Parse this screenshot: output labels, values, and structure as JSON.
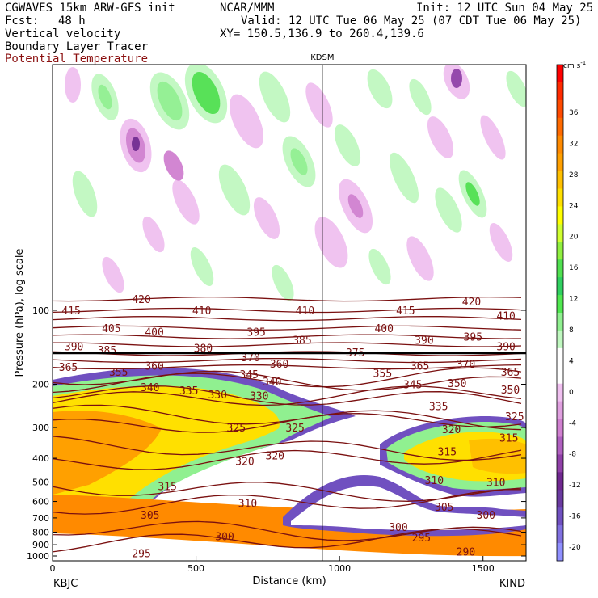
{
  "header": {
    "model": "CGWAVES 15km ARW-GFS init",
    "org": "NCAR/MMM",
    "init": "Init: 12 UTC Sun 04 May 25",
    "fcst_label": "Fcst:",
    "fcst_value": "48 h",
    "valid": "Valid: 12 UTC Tue 06 May 25 (07 CDT Tue 06 May 25)",
    "field1": "Vertical velocity",
    "field2": "Boundary Layer Tracer",
    "field3": "Potential Temperature",
    "xy": "XY= 150.5,136.9 to 260.4,139.6"
  },
  "chart_data": {
    "type": "heatmap",
    "title": "",
    "ylabel": "Pressure (hPa), log scale",
    "xlabel": "Distance (km)",
    "xlim": [
      0,
      1650
    ],
    "ylim": [
      1040,
      10
    ],
    "x_ticks": [
      0,
      500,
      1000,
      1500
    ],
    "y_ticks": [
      100,
      200,
      300,
      400,
      500,
      600,
      700,
      800,
      900,
      1000
    ],
    "station_marker": {
      "label": "KDSM",
      "x": 940
    },
    "endpoints": {
      "left": "KBJC",
      "right": "KIND"
    },
    "colorbar": {
      "unit": "cm s",
      "unit_exp": "-1",
      "labels": [
        "36",
        "32",
        "28",
        "24",
        "20",
        "16",
        "12",
        "8",
        "4",
        "0",
        "-4",
        "-8",
        "-12",
        "-16",
        "-20"
      ],
      "colors": [
        "#ff0000",
        "#ff2a00",
        "#ff4a00",
        "#ff6a00",
        "#ff8a00",
        "#ffa000",
        "#ffc000",
        "#ffe000",
        "#ffff00",
        "#d0ff30",
        "#90f040",
        "#50e050",
        "#30d060",
        "#50e850",
        "#90f090",
        "#c0f8c0",
        "#ffffff",
        "#ffffff",
        "#f0c0f0",
        "#e0a0e0",
        "#d080d0",
        "#b060c0",
        "#9040a8",
        "#702890",
        "#6a3aa0",
        "#7050c0",
        "#8070e0",
        "#9090ff"
      ]
    },
    "theta_labels": [
      {
        "t": "415",
        "x": 65,
        "p": 100
      },
      {
        "t": "420",
        "x": 310,
        "p": 90
      },
      {
        "t": "410",
        "x": 520,
        "p": 100
      },
      {
        "t": "415",
        "x": 1230,
        "p": 100
      },
      {
        "t": "420",
        "x": 1460,
        "p": 92
      },
      {
        "t": "410",
        "x": 1580,
        "p": 105
      },
      {
        "t": "405",
        "x": 205,
        "p": 118
      },
      {
        "t": "400",
        "x": 355,
        "p": 122
      },
      {
        "t": "410",
        "x": 880,
        "p": 100
      },
      {
        "t": "395",
        "x": 710,
        "p": 122
      },
      {
        "t": "400",
        "x": 1155,
        "p": 118
      },
      {
        "t": "395",
        "x": 1465,
        "p": 128
      },
      {
        "t": "390",
        "x": 75,
        "p": 140
      },
      {
        "t": "385",
        "x": 190,
        "p": 145
      },
      {
        "t": "380",
        "x": 525,
        "p": 142
      },
      {
        "t": "385",
        "x": 870,
        "p": 132
      },
      {
        "t": "390",
        "x": 1295,
        "p": 132
      },
      {
        "t": "390",
        "x": 1580,
        "p": 140
      },
      {
        "t": "375",
        "x": 1055,
        "p": 148
      },
      {
        "t": "370",
        "x": 690,
        "p": 155
      },
      {
        "t": "370",
        "x": 1440,
        "p": 165
      },
      {
        "t": "365",
        "x": 55,
        "p": 170
      },
      {
        "t": "355",
        "x": 230,
        "p": 178
      },
      {
        "t": "360",
        "x": 355,
        "p": 168
      },
      {
        "t": "360",
        "x": 790,
        "p": 165
      },
      {
        "t": "365",
        "x": 1280,
        "p": 168
      },
      {
        "t": "365",
        "x": 1595,
        "p": 178
      },
      {
        "t": "355",
        "x": 1150,
        "p": 180
      },
      {
        "t": "345",
        "x": 685,
        "p": 182
      },
      {
        "t": "340",
        "x": 765,
        "p": 195
      },
      {
        "t": "345",
        "x": 1255,
        "p": 200
      },
      {
        "t": "350",
        "x": 1410,
        "p": 198
      },
      {
        "t": "350",
        "x": 1595,
        "p": 210
      },
      {
        "t": "340",
        "x": 340,
        "p": 205
      },
      {
        "t": "335",
        "x": 475,
        "p": 212
      },
      {
        "t": "330",
        "x": 575,
        "p": 220
      },
      {
        "t": "330",
        "x": 720,
        "p": 222
      },
      {
        "t": "335",
        "x": 1345,
        "p": 245
      },
      {
        "t": "325",
        "x": 1610,
        "p": 270
      },
      {
        "t": "325",
        "x": 640,
        "p": 300
      },
      {
        "t": "325",
        "x": 845,
        "p": 300
      },
      {
        "t": "320",
        "x": 1390,
        "p": 305
      },
      {
        "t": "315",
        "x": 1590,
        "p": 330
      },
      {
        "t": "320",
        "x": 670,
        "p": 410
      },
      {
        "t": "320",
        "x": 775,
        "p": 390
      },
      {
        "t": "315",
        "x": 1375,
        "p": 375
      },
      {
        "t": "315",
        "x": 400,
        "p": 520
      },
      {
        "t": "310",
        "x": 1330,
        "p": 490
      },
      {
        "t": "310",
        "x": 1545,
        "p": 500
      },
      {
        "t": "310",
        "x": 680,
        "p": 610
      },
      {
        "t": "305",
        "x": 340,
        "p": 680
      },
      {
        "t": "305",
        "x": 1365,
        "p": 630
      },
      {
        "t": "300",
        "x": 1510,
        "p": 680
      },
      {
        "t": "300",
        "x": 600,
        "p": 830
      },
      {
        "t": "300",
        "x": 1205,
        "p": 760
      },
      {
        "t": "295",
        "x": 1285,
        "p": 840
      },
      {
        "t": "295",
        "x": 310,
        "p": 975
      },
      {
        "t": "290",
        "x": 1440,
        "p": 960
      }
    ]
  }
}
